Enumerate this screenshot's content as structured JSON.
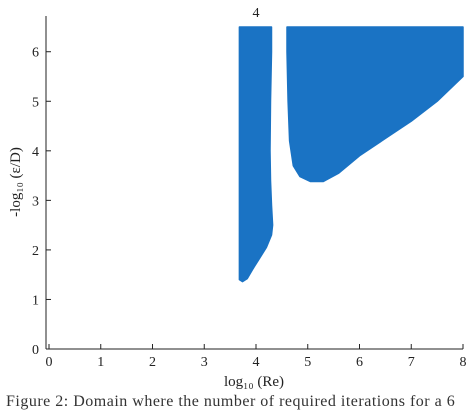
{
  "chart_data": {
    "type": "area",
    "xlabel": "log₁₀ (Re)",
    "ylabel": "-log₁₀ (ε/D)",
    "xlim": [
      0,
      8
    ],
    "ylim": [
      0,
      6.6
    ],
    "x_ticks": [
      "0",
      "1",
      "2",
      "3",
      "4",
      "5",
      "6",
      "7",
      "8"
    ],
    "y_ticks": [
      "0",
      "1",
      "2",
      "3",
      "4",
      "5",
      "6"
    ],
    "annotation": {
      "text": "4",
      "x": 4.0,
      "y": 6.7
    },
    "grid": false,
    "fill_color": "#1a73c4",
    "regions": [
      {
        "outline": [
          [
            3.68,
            6.5
          ],
          [
            4.3,
            6.5
          ],
          [
            4.3,
            6.0
          ],
          [
            4.28,
            5.0
          ],
          [
            4.27,
            4.0
          ],
          [
            4.28,
            3.4
          ],
          [
            4.3,
            2.9
          ],
          [
            4.32,
            2.5
          ],
          [
            4.3,
            2.3
          ],
          [
            4.2,
            2.05
          ],
          [
            4.05,
            1.8
          ],
          [
            3.93,
            1.6
          ],
          [
            3.83,
            1.42
          ],
          [
            3.74,
            1.36
          ],
          [
            3.68,
            1.4
          ],
          [
            3.68,
            2.5
          ],
          [
            3.68,
            4.0
          ],
          [
            3.68,
            5.5
          ]
        ]
      },
      {
        "outline": [
          [
            4.6,
            6.5
          ],
          [
            8.0,
            6.5
          ],
          [
            8.0,
            5.5
          ],
          [
            7.5,
            5.0
          ],
          [
            7.0,
            4.6
          ],
          [
            6.5,
            4.25
          ],
          [
            6.0,
            3.9
          ],
          [
            5.6,
            3.55
          ],
          [
            5.3,
            3.38
          ],
          [
            5.05,
            3.38
          ],
          [
            4.85,
            3.48
          ],
          [
            4.72,
            3.7
          ],
          [
            4.65,
            4.2
          ],
          [
            4.62,
            5.0
          ],
          [
            4.6,
            6.0
          ]
        ]
      }
    ]
  },
  "caption": "Figure 2: Domain where the number of required iterations for a 6"
}
